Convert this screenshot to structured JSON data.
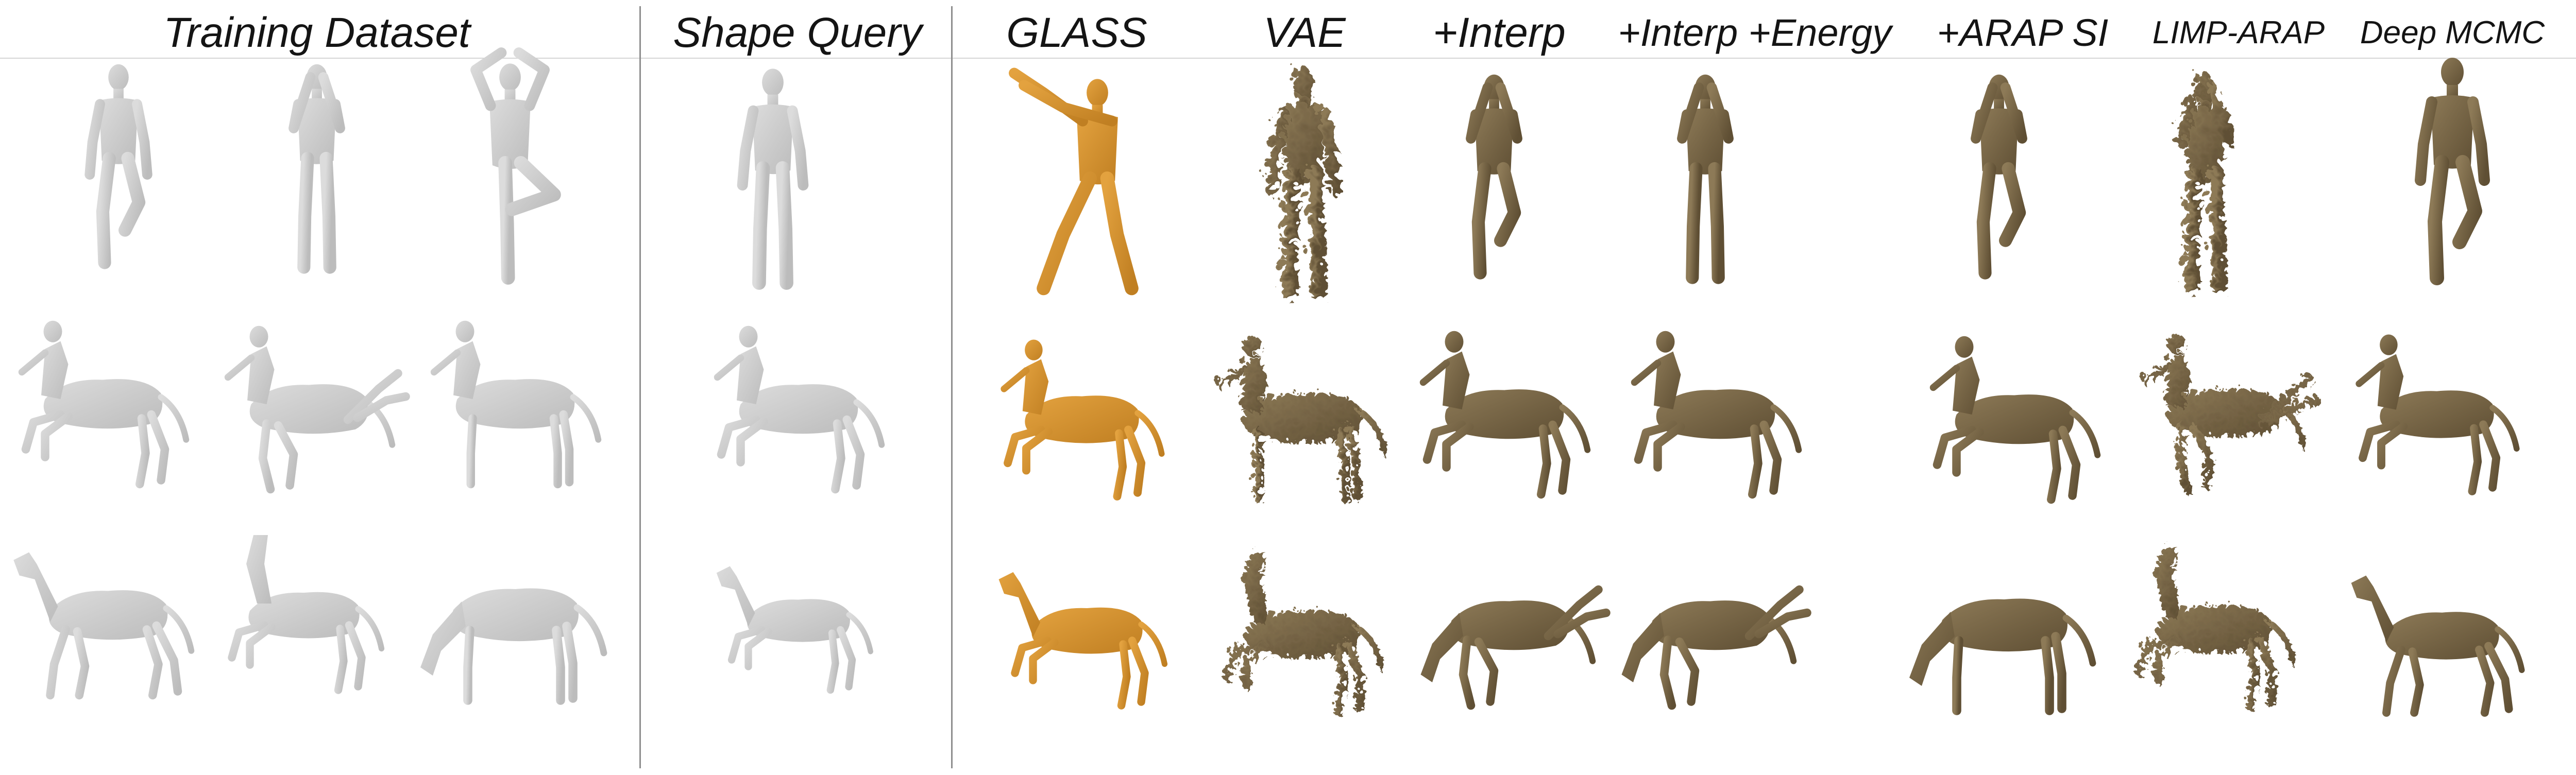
{
  "figure": {
    "columns": [
      {
        "id": "training-dataset",
        "label": "Training Dataset"
      },
      {
        "id": "shape-query",
        "label": "Shape Query"
      },
      {
        "id": "glass",
        "label": "GLASS"
      },
      {
        "id": "vae",
        "label": "VAE"
      },
      {
        "id": "interp",
        "label": "+Interp"
      },
      {
        "id": "interp-energy",
        "label": "+Interp +Energy"
      },
      {
        "id": "arap-si",
        "label": "+ARAP SI"
      },
      {
        "id": "limp-arap",
        "label": "LIMP-ARAP"
      },
      {
        "id": "deep-mcmc",
        "label": "Deep MCMC"
      }
    ],
    "rows": [
      "human",
      "centaur",
      "horse"
    ],
    "colors": {
      "training": "#dcdcdc",
      "training_shade": "#bcbcbc",
      "glass": "#e3a23f",
      "glass_shade": "#c07f22",
      "result": "#8d7a57",
      "result_shade": "#5f4f34",
      "rule": "#8e8e8e"
    }
  }
}
